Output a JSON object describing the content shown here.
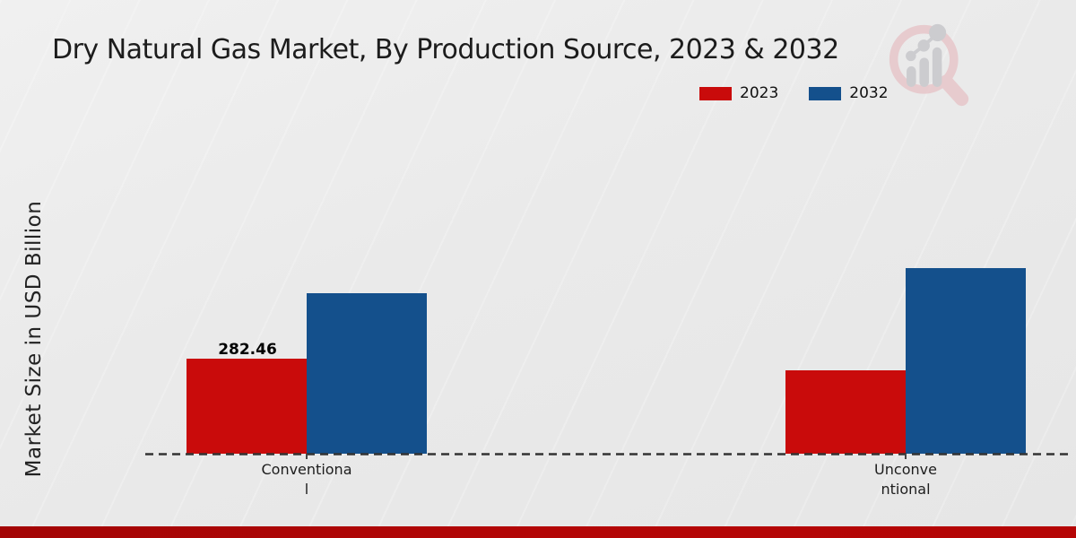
{
  "chart_data": {
    "type": "bar",
    "title": "Dry Natural Gas Market, By Production Source, 2023 & 2032",
    "xlabel": "",
    "ylabel": "Market Size in USD Billion",
    "categories": [
      "Conventional",
      "Unconventional"
    ],
    "x_tick_display": [
      [
        "Conventiona",
        "l"
      ],
      [
        "Unconve",
        "ntional"
      ]
    ],
    "series": [
      {
        "name": "2023",
        "color": "#c90b0b",
        "values": [
          282.46,
          248
        ]
      },
      {
        "name": "2032",
        "color": "#14508c",
        "values": [
          477,
          552
        ]
      }
    ],
    "data_labels": [
      {
        "series": "2023",
        "category": "Conventional",
        "text": "282.46"
      }
    ],
    "ylim": [
      0,
      600
    ],
    "grid": false,
    "legend_position": "top-right",
    "baseline_style": "dashed"
  },
  "branding": {
    "logo_icon": "magnifier-growth-chart-watermark"
  },
  "footer": {
    "accent_bar_color": "#b30606"
  }
}
